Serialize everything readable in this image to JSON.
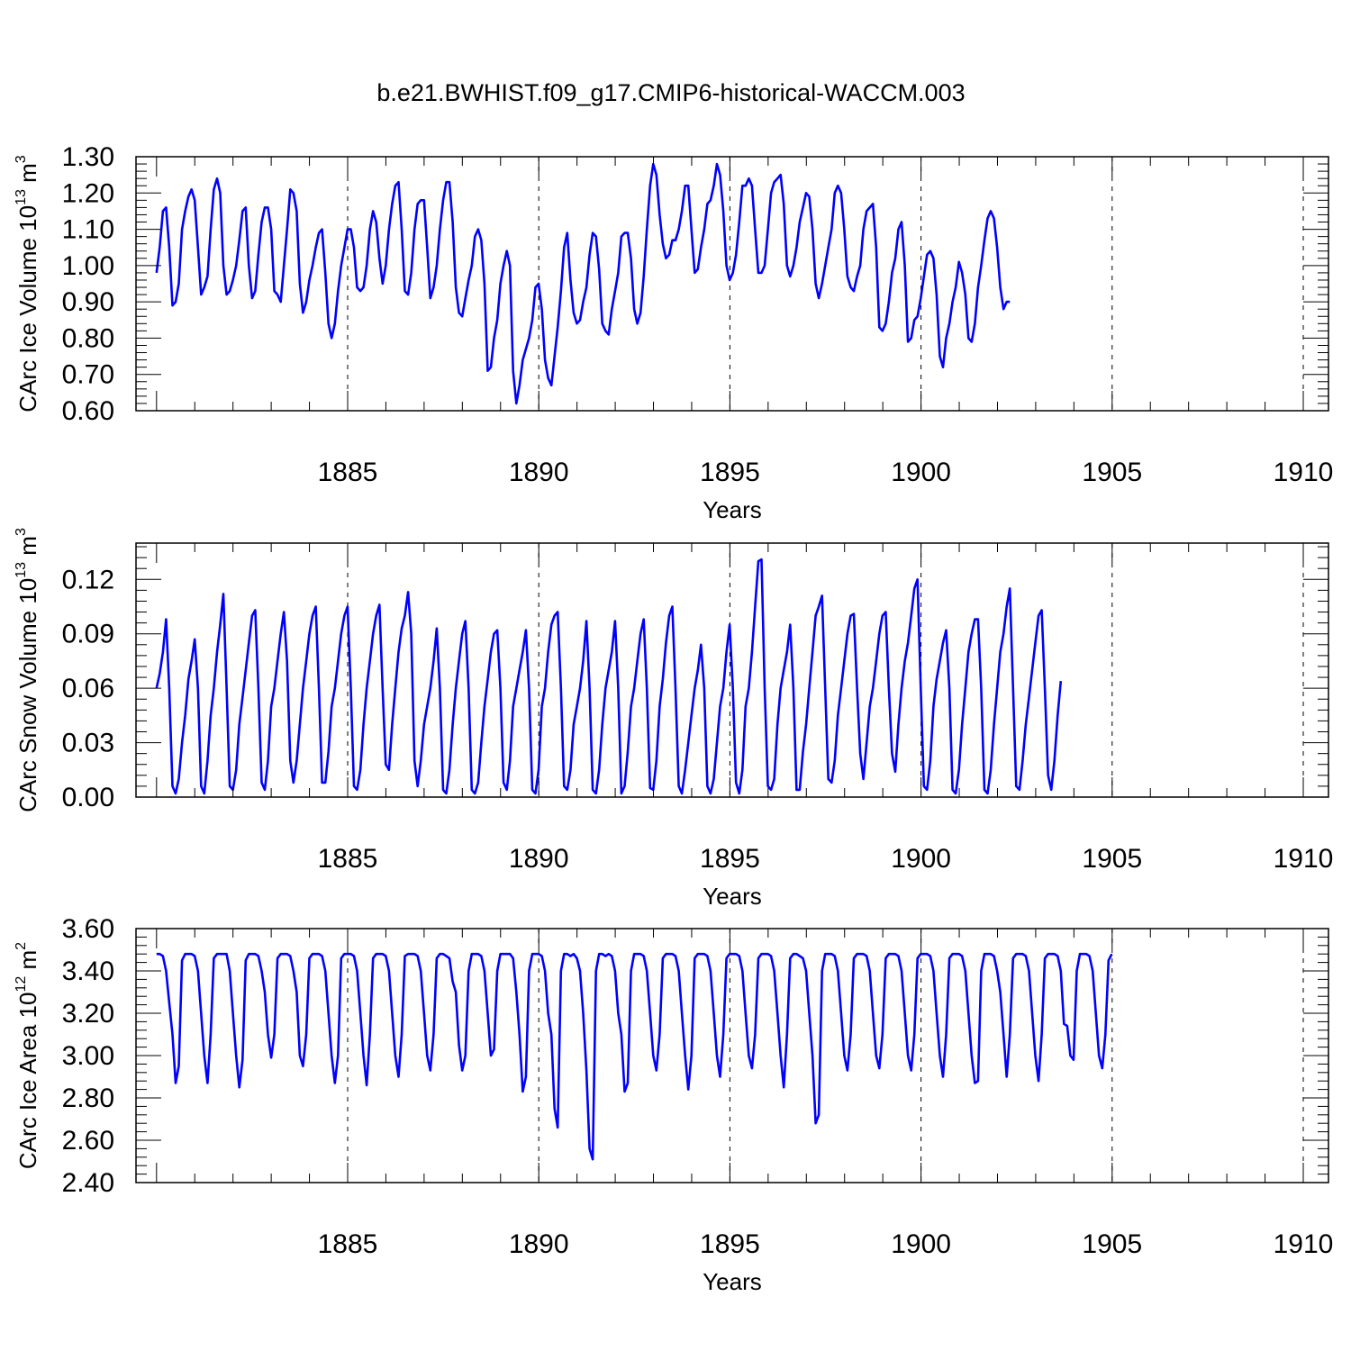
{
  "title": "b.e21.BWHIST.f09_g17.CMIP6-historical-WACCM.003",
  "colors": {
    "line": "#0000ff",
    "axis": "#000000",
    "grid": "#000000"
  },
  "chart_data": [
    {
      "type": "line",
      "ylabel": "CArc Ice Volume 10",
      "ylabel_exp": "13",
      "ylabel_unit": " m",
      "ylabel_unit_exp": "3",
      "xlabel": "Years",
      "xlim": [
        1880,
        1910
      ],
      "ylim": [
        0.6,
        1.3
      ],
      "yticks": [
        0.6,
        0.7,
        0.8,
        0.9,
        1.0,
        1.1,
        1.2,
        1.3
      ],
      "ytick_labels": [
        "0.60",
        "0.70",
        "0.80",
        "0.90",
        "1.00",
        "1.10",
        "1.20",
        "1.30"
      ],
      "xticks": [
        1885,
        1890,
        1895,
        1900,
        1905,
        1910
      ],
      "xtick_labels": [
        "1885",
        "1890",
        "1895",
        "1900",
        "1905",
        "1910"
      ],
      "grid": "vertical-dashed",
      "series": [
        {
          "start_year": 1880.0,
          "step": 0.0833,
          "values": [
            0.98,
            1.05,
            1.15,
            1.16,
            1.05,
            0.89,
            0.9,
            0.95,
            1.1,
            1.15,
            1.19,
            1.21,
            1.18,
            1.05,
            0.92,
            0.94,
            0.97,
            1.1,
            1.21,
            1.24,
            1.2,
            1.0,
            0.92,
            0.93,
            0.96,
            1.0,
            1.07,
            1.15,
            1.16,
            1.0,
            0.91,
            0.93,
            1.03,
            1.12,
            1.16,
            1.16,
            1.1,
            0.93,
            0.92,
            0.9,
            1.0,
            1.1,
            1.21,
            1.2,
            1.15,
            0.95,
            0.87,
            0.9,
            0.96,
            1.0,
            1.05,
            1.09,
            1.1,
            0.98,
            0.84,
            0.8,
            0.84,
            0.93,
            1.0,
            1.05,
            1.1,
            1.1,
            1.05,
            0.94,
            0.93,
            0.94,
            1.0,
            1.1,
            1.15,
            1.12,
            1.02,
            0.95,
            1.0,
            1.1,
            1.17,
            1.22,
            1.23,
            1.1,
            0.93,
            0.92,
            0.98,
            1.1,
            1.17,
            1.18,
            1.18,
            1.05,
            0.91,
            0.94,
            1.0,
            1.1,
            1.18,
            1.23,
            1.23,
            1.12,
            0.94,
            0.87,
            0.86,
            0.91,
            0.96,
            1.0,
            1.08,
            1.1,
            1.07,
            0.95,
            0.71,
            0.72,
            0.8,
            0.85,
            0.95,
            1.0,
            1.04,
            1.0,
            0.71,
            0.62,
            0.67,
            0.74,
            0.77,
            0.8,
            0.85,
            0.94,
            0.95,
            0.88,
            0.74,
            0.69,
            0.67,
            0.75,
            0.83,
            0.93,
            1.05,
            1.09,
            0.96,
            0.87,
            0.84,
            0.85,
            0.9,
            0.94,
            1.03,
            1.09,
            1.08,
            0.99,
            0.84,
            0.82,
            0.81,
            0.88,
            0.93,
            0.98,
            1.08,
            1.09,
            1.09,
            1.02,
            0.88,
            0.84,
            0.87,
            0.97,
            1.1,
            1.22,
            1.28,
            1.25,
            1.14,
            1.06,
            1.02,
            1.03,
            1.07,
            1.07,
            1.1,
            1.15,
            1.22,
            1.22,
            1.1,
            0.98,
            0.99,
            1.05,
            1.1,
            1.17,
            1.18,
            1.22,
            1.28,
            1.25,
            1.15,
            1.0,
            0.96,
            0.98,
            1.03,
            1.12,
            1.22,
            1.22,
            1.24,
            1.22,
            1.1,
            0.98,
            0.98,
            1.0,
            1.1,
            1.2,
            1.23,
            1.24,
            1.25,
            1.17,
            1.0,
            0.97,
            1.0,
            1.05,
            1.12,
            1.16,
            1.2,
            1.19,
            1.1,
            0.95,
            0.91,
            0.95,
            1.0,
            1.05,
            1.1,
            1.2,
            1.22,
            1.2,
            1.1,
            0.97,
            0.94,
            0.93,
            0.97,
            1.0,
            1.1,
            1.15,
            1.16,
            1.17,
            1.05,
            0.83,
            0.82,
            0.84,
            0.9,
            0.98,
            1.02,
            1.1,
            1.12,
            1.0,
            0.79,
            0.8,
            0.85,
            0.86,
            0.91,
            0.97,
            1.03,
            1.04,
            1.02,
            0.92,
            0.75,
            0.72,
            0.8,
            0.84,
            0.9,
            0.94,
            1.01,
            0.98,
            0.92,
            0.8,
            0.79,
            0.84,
            0.94,
            1.0,
            1.07,
            1.13,
            1.15,
            1.13,
            1.05,
            0.94,
            0.88,
            0.9,
            0.9
          ]
        }
      ]
    },
    {
      "type": "line",
      "ylabel": "CArc Snow Volume 10",
      "ylabel_exp": "13",
      "ylabel_unit": " m",
      "ylabel_unit_exp": "3",
      "xlabel": "Years",
      "xlim": [
        1880,
        1910
      ],
      "ylim": [
        0.0,
        0.14
      ],
      "yticks": [
        0.0,
        0.03,
        0.06,
        0.09,
        0.12
      ],
      "ytick_labels": [
        "0.00",
        "0.03",
        "0.06",
        "0.09",
        "0.12"
      ],
      "xticks": [
        1885,
        1890,
        1895,
        1900,
        1905,
        1910
      ],
      "xtick_labels": [
        "1885",
        "1890",
        "1895",
        "1900",
        "1905",
        "1910"
      ],
      "grid": "vertical-dashed",
      "series": [
        {
          "start_year": 1880.0,
          "step": 0.0833,
          "values": [
            0.06,
            0.068,
            0.08,
            0.098,
            0.06,
            0.006,
            0.002,
            0.01,
            0.03,
            0.045,
            0.065,
            0.075,
            0.087,
            0.06,
            0.006,
            0.002,
            0.02,
            0.045,
            0.06,
            0.08,
            0.095,
            0.112,
            0.06,
            0.006,
            0.004,
            0.015,
            0.04,
            0.055,
            0.07,
            0.085,
            0.1,
            0.103,
            0.06,
            0.008,
            0.004,
            0.02,
            0.05,
            0.06,
            0.075,
            0.09,
            0.102,
            0.075,
            0.02,
            0.008,
            0.02,
            0.04,
            0.06,
            0.075,
            0.09,
            0.1,
            0.105,
            0.06,
            0.008,
            0.008,
            0.025,
            0.05,
            0.06,
            0.075,
            0.09,
            0.1,
            0.105,
            0.06,
            0.006,
            0.004,
            0.015,
            0.04,
            0.06,
            0.075,
            0.09,
            0.1,
            0.106,
            0.06,
            0.018,
            0.015,
            0.04,
            0.06,
            0.08,
            0.093,
            0.1,
            0.113,
            0.09,
            0.02,
            0.006,
            0.02,
            0.04,
            0.05,
            0.06,
            0.075,
            0.093,
            0.06,
            0.004,
            0.002,
            0.015,
            0.04,
            0.06,
            0.075,
            0.09,
            0.097,
            0.06,
            0.004,
            0.002,
            0.008,
            0.03,
            0.05,
            0.065,
            0.08,
            0.09,
            0.092,
            0.06,
            0.008,
            0.004,
            0.02,
            0.05,
            0.06,
            0.07,
            0.08,
            0.092,
            0.06,
            0.004,
            0.002,
            0.015,
            0.05,
            0.06,
            0.08,
            0.095,
            0.1,
            0.102,
            0.06,
            0.006,
            0.004,
            0.015,
            0.04,
            0.05,
            0.06,
            0.075,
            0.097,
            0.06,
            0.004,
            0.002,
            0.015,
            0.04,
            0.06,
            0.07,
            0.08,
            0.097,
            0.06,
            0.002,
            0.006,
            0.025,
            0.05,
            0.06,
            0.075,
            0.09,
            0.098,
            0.06,
            0.005,
            0.004,
            0.02,
            0.05,
            0.065,
            0.085,
            0.1,
            0.105,
            0.06,
            0.006,
            0.002,
            0.015,
            0.03,
            0.045,
            0.06,
            0.07,
            0.084,
            0.06,
            0.006,
            0.002,
            0.01,
            0.03,
            0.05,
            0.06,
            0.08,
            0.095,
            0.06,
            0.008,
            0.002,
            0.015,
            0.05,
            0.06,
            0.08,
            0.105,
            0.13,
            0.131,
            0.06,
            0.006,
            0.004,
            0.01,
            0.04,
            0.06,
            0.07,
            0.08,
            0.095,
            0.06,
            0.004,
            0.004,
            0.025,
            0.04,
            0.06,
            0.08,
            0.1,
            0.105,
            0.111,
            0.06,
            0.01,
            0.008,
            0.02,
            0.045,
            0.06,
            0.075,
            0.09,
            0.1,
            0.101,
            0.06,
            0.024,
            0.01,
            0.03,
            0.05,
            0.06,
            0.075,
            0.09,
            0.1,
            0.102,
            0.06,
            0.024,
            0.014,
            0.04,
            0.06,
            0.075,
            0.085,
            0.1,
            0.115,
            0.12,
            0.06,
            0.006,
            0.004,
            0.02,
            0.05,
            0.065,
            0.075,
            0.085,
            0.092,
            0.06,
            0.004,
            0.002,
            0.015,
            0.04,
            0.06,
            0.08,
            0.09,
            0.098,
            0.098,
            0.06,
            0.004,
            0.002,
            0.015,
            0.04,
            0.06,
            0.08,
            0.09,
            0.105,
            0.115,
            0.06,
            0.006,
            0.004,
            0.02,
            0.04,
            0.055,
            0.07,
            0.085,
            0.1,
            0.103,
            0.06,
            0.012,
            0.004,
            0.02,
            0.045,
            0.064
          ]
        }
      ]
    },
    {
      "type": "line",
      "ylabel": "CArc Ice Area 10",
      "ylabel_exp": "12",
      "ylabel_unit": " m",
      "ylabel_unit_exp": "2",
      "xlabel": "Years",
      "xlim": [
        1880,
        1910
      ],
      "ylim": [
        2.4,
        3.6
      ],
      "yticks": [
        2.4,
        2.6,
        2.8,
        3.0,
        3.2,
        3.4,
        3.6
      ],
      "ytick_labels": [
        "2.40",
        "2.60",
        "2.80",
        "3.00",
        "3.20",
        "3.40",
        "3.60"
      ],
      "xticks": [
        1885,
        1890,
        1895,
        1900,
        1905,
        1910
      ],
      "xtick_labels": [
        "1885",
        "1890",
        "1895",
        "1900",
        "1905",
        "1910"
      ],
      "grid": "vertical-dashed",
      "series": [
        {
          "start_year": 1880.0,
          "step": 0.0833,
          "values": [
            3.48,
            3.48,
            3.47,
            3.4,
            3.25,
            3.1,
            2.87,
            2.95,
            3.45,
            3.48,
            3.48,
            3.48,
            3.47,
            3.4,
            3.2,
            3.0,
            2.87,
            3.1,
            3.46,
            3.48,
            3.48,
            3.48,
            3.48,
            3.4,
            3.2,
            3.0,
            2.85,
            2.98,
            3.45,
            3.48,
            3.48,
            3.48,
            3.47,
            3.4,
            3.3,
            3.1,
            2.99,
            3.1,
            3.46,
            3.48,
            3.48,
            3.48,
            3.47,
            3.4,
            3.3,
            3.0,
            2.95,
            3.1,
            3.46,
            3.48,
            3.48,
            3.48,
            3.47,
            3.4,
            3.2,
            3.0,
            2.87,
            3.0,
            3.46,
            3.48,
            3.48,
            3.48,
            3.47,
            3.4,
            3.2,
            3.0,
            2.86,
            3.1,
            3.46,
            3.48,
            3.48,
            3.48,
            3.47,
            3.4,
            3.2,
            3.0,
            2.9,
            3.1,
            3.47,
            3.48,
            3.48,
            3.48,
            3.47,
            3.4,
            3.2,
            3.0,
            2.93,
            3.1,
            3.46,
            3.48,
            3.48,
            3.47,
            3.46,
            3.35,
            3.3,
            3.05,
            2.93,
            3.0,
            3.4,
            3.48,
            3.48,
            3.48,
            3.47,
            3.4,
            3.2,
            3.0,
            3.03,
            3.4,
            3.48,
            3.48,
            3.48,
            3.48,
            3.46,
            3.3,
            3.1,
            2.83,
            2.9,
            3.4,
            3.48,
            3.48,
            3.48,
            3.47,
            3.4,
            3.2,
            3.1,
            2.75,
            2.66,
            3.4,
            3.48,
            3.48,
            3.47,
            3.48,
            3.46,
            3.4,
            3.2,
            2.93,
            2.56,
            2.51,
            3.4,
            3.48,
            3.48,
            3.47,
            3.48,
            3.47,
            3.4,
            3.2,
            3.1,
            2.83,
            2.87,
            3.4,
            3.48,
            3.48,
            3.48,
            3.47,
            3.4,
            3.2,
            3.0,
            2.93,
            3.1,
            3.46,
            3.48,
            3.48,
            3.48,
            3.47,
            3.4,
            3.2,
            3.0,
            2.84,
            3.0,
            3.46,
            3.48,
            3.48,
            3.48,
            3.47,
            3.4,
            3.2,
            3.0,
            2.9,
            3.1,
            3.46,
            3.48,
            3.48,
            3.48,
            3.47,
            3.4,
            3.2,
            3.0,
            2.94,
            3.1,
            3.46,
            3.48,
            3.48,
            3.48,
            3.47,
            3.4,
            3.2,
            3.0,
            2.85,
            3.1,
            3.46,
            3.48,
            3.48,
            3.47,
            3.46,
            3.4,
            3.2,
            3.0,
            2.68,
            2.72,
            3.4,
            3.48,
            3.48,
            3.48,
            3.47,
            3.4,
            3.2,
            3.0,
            2.93,
            3.1,
            3.46,
            3.48,
            3.48,
            3.48,
            3.47,
            3.4,
            3.2,
            3.0,
            2.94,
            3.1,
            3.46,
            3.48,
            3.48,
            3.48,
            3.47,
            3.4,
            3.2,
            3.0,
            2.93,
            3.1,
            3.46,
            3.48,
            3.48,
            3.48,
            3.47,
            3.4,
            3.2,
            3.0,
            2.9,
            3.1,
            3.46,
            3.48,
            3.48,
            3.48,
            3.47,
            3.4,
            3.2,
            3.0,
            2.87,
            2.88,
            3.4,
            3.48,
            3.48,
            3.48,
            3.47,
            3.4,
            3.3,
            3.1,
            2.9,
            3.1,
            3.46,
            3.48,
            3.48,
            3.48,
            3.47,
            3.4,
            3.2,
            3.0,
            2.88,
            3.1,
            3.46,
            3.48,
            3.48,
            3.48,
            3.47,
            3.4,
            3.15,
            3.14,
            3.0,
            2.98,
            3.4,
            3.48,
            3.48,
            3.48,
            3.47,
            3.4,
            3.2,
            3.0,
            2.94,
            3.1,
            3.45,
            3.48
          ]
        }
      ]
    }
  ]
}
